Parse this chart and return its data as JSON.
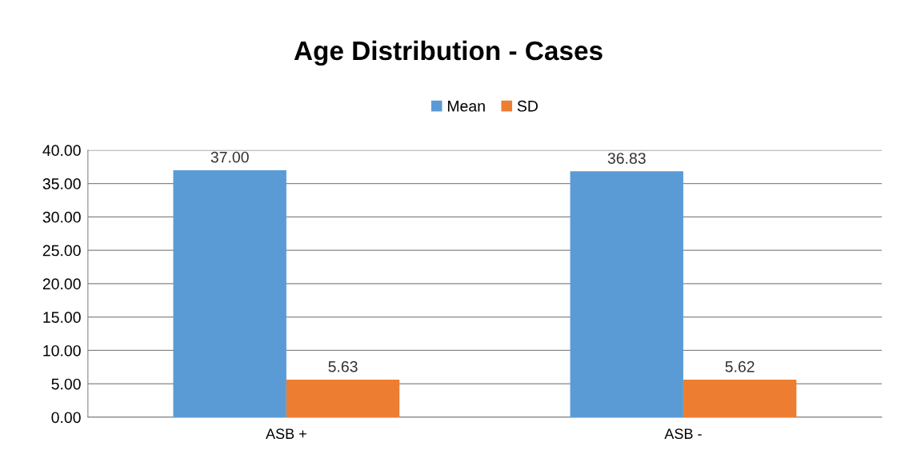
{
  "chart_data": {
    "type": "bar",
    "title": "Age Distribution - Cases",
    "categories": [
      "ASB +",
      "ASB -"
    ],
    "series": [
      {
        "name": "Mean",
        "color": "#5b9bd5",
        "values": [
          37.0,
          36.83
        ],
        "value_labels": [
          "37.00",
          "36.83"
        ]
      },
      {
        "name": "SD",
        "color": "#ed7d31",
        "values": [
          5.63,
          5.62
        ],
        "value_labels": [
          "5.63",
          "5.62"
        ]
      }
    ],
    "ylim": [
      0,
      40
    ],
    "yticks": [
      {
        "value": 0,
        "label": "0.00"
      },
      {
        "value": 5,
        "label": "5.00"
      },
      {
        "value": 10,
        "label": "10.00"
      },
      {
        "value": 15,
        "label": "15.00"
      },
      {
        "value": 20,
        "label": "20.00"
      },
      {
        "value": 25,
        "label": "25.00"
      },
      {
        "value": 30,
        "label": "30.00"
      },
      {
        "value": 35,
        "label": "35.00"
      },
      {
        "value": 40,
        "label": "40.00"
      }
    ],
    "grid": "y",
    "legend": "top"
  }
}
